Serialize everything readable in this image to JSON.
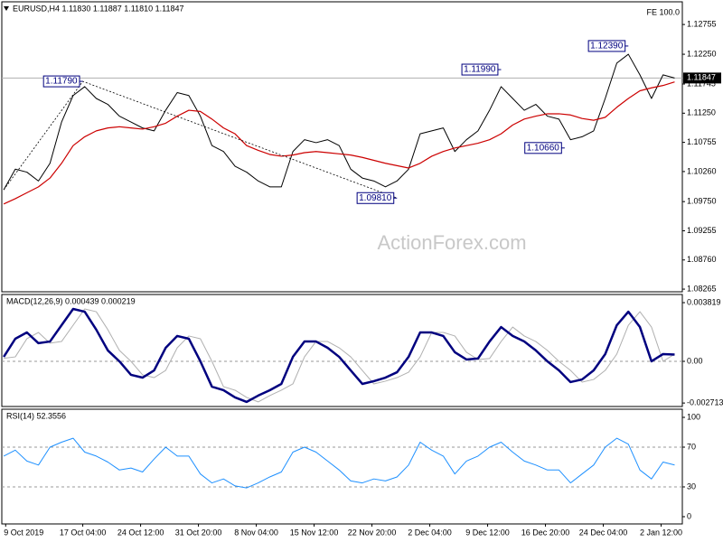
{
  "chart_data": [
    {
      "type": "line",
      "title": "EURUSD,H4  1.11830 1.11887 1.11810 1.11847",
      "label": "FE 100.0",
      "watermark": "ActionForex.com",
      "x": [
        0,
        6,
        12,
        18,
        24,
        30,
        36,
        42,
        48,
        54,
        60,
        66,
        72,
        78,
        84,
        90,
        96,
        102,
        108,
        114,
        120,
        126,
        132,
        138,
        144,
        150,
        156,
        162,
        168,
        174,
        180,
        186,
        192,
        198,
        204,
        210,
        216,
        222,
        228,
        234,
        240,
        246,
        252,
        258,
        264,
        270,
        276,
        282,
        288,
        294,
        300,
        306,
        312,
        318,
        324,
        330,
        336,
        342,
        348
      ],
      "xlim": [
        -1,
        352
      ],
      "ylim": [
        1.0822,
        1.1314
      ],
      "yticks": [
        1.12755,
        {
          "value": 1.1225,
          "label": "1.12250"
        },
        1.11745,
        {
          "value": 1.1125,
          "label": "1.11250"
        },
        1.10755,
        {
          "value": 1.1026,
          "label": "1.10260"
        },
        {
          "value": 1.0975,
          "label": "1.09750"
        },
        1.09255,
        {
          "value": 1.0876,
          "label": "1.08760"
        },
        1.08265
      ],
      "series": [
        {
          "color": "#000000",
          "width": 1,
          "values": [
            1.0995,
            1.103,
            1.1025,
            1.101,
            1.104,
            1.111,
            1.1155,
            1.117,
            1.115,
            1.114,
            1.112,
            1.111,
            1.11,
            1.1095,
            1.113,
            1.116,
            1.1155,
            1.112,
            1.107,
            1.106,
            1.1035,
            1.1025,
            1.101,
            1.1,
            1.1,
            1.106,
            1.108,
            1.1075,
            1.108,
            1.107,
            1.103,
            1.1015,
            1.101,
            1.1,
            1.101,
            1.103,
            1.109,
            1.1095,
            1.11,
            1.106,
            1.108,
            1.1095,
            1.113,
            1.117,
            1.115,
            1.113,
            1.114,
            1.112,
            1.1115,
            1.108,
            1.1085,
            1.1095,
            1.115,
            1.121,
            1.1225,
            1.119,
            1.115,
            1.119,
            1.11847
          ]
        },
        {
          "color": "#cc0000",
          "width": 1.2,
          "values": [
            1.0971,
            1.098,
            1.099,
            1.1,
            1.1015,
            1.104,
            1.107,
            1.1085,
            1.1095,
            1.11,
            1.1102,
            1.11,
            1.1098,
            1.1102,
            1.1108,
            1.112,
            1.113,
            1.1128,
            1.1115,
            1.11,
            1.109,
            1.107,
            1.1062,
            1.1055,
            1.1052,
            1.1054,
            1.1058,
            1.106,
            1.1058,
            1.1056,
            1.1054,
            1.105,
            1.1045,
            1.104,
            1.1036,
            1.1032,
            1.104,
            1.1052,
            1.106,
            1.1066,
            1.107,
            1.1074,
            1.108,
            1.109,
            1.1105,
            1.1115,
            1.112,
            1.1124,
            1.1124,
            1.1122,
            1.1116,
            1.1113,
            1.1118,
            1.1135,
            1.115,
            1.1163,
            1.1168,
            1.1172,
            1.1178
          ]
        }
      ],
      "annotations": [
        {
          "text": "1.11790",
          "x": 41,
          "value": 1.1179
        },
        {
          "text": "1.11990",
          "x": 258,
          "value": 1.1199
        },
        {
          "text": "1.12390",
          "x": 324,
          "value": 1.1239
        },
        {
          "text": "1.10660",
          "x": 291,
          "value": 1.1066
        },
        {
          "text": "1.09810",
          "x": 204,
          "value": 1.0981
        }
      ],
      "last_price": 1.11847
    },
    {
      "type": "line",
      "title": "MACD(12,26,9) 0.000439 0.000219",
      "x": [
        0,
        6,
        12,
        18,
        24,
        30,
        36,
        42,
        48,
        54,
        60,
        66,
        72,
        78,
        84,
        90,
        96,
        102,
        108,
        114,
        120,
        126,
        132,
        138,
        144,
        150,
        156,
        162,
        168,
        174,
        180,
        186,
        192,
        198,
        204,
        210,
        216,
        222,
        228,
        234,
        240,
        246,
        252,
        258,
        264,
        270,
        276,
        282,
        288,
        294,
        300,
        306,
        312,
        318,
        324,
        330,
        336,
        342,
        348
      ],
      "xlim": [
        -1,
        352
      ],
      "ylim": [
        -0.00294,
        0.00435
      ],
      "yticks": [
        0.003819,
        {
          "value": 0,
          "label": "0.00"
        },
        -0.002713
      ],
      "level_lines": true,
      "series": [
        {
          "color": "#b0b0b0",
          "width": 1,
          "values": [
            0.0002,
            0.00029,
            0.00147,
            0.00188,
            0.00118,
            0.00129,
            0.00235,
            0.00341,
            0.00323,
            0.00206,
            0.00071,
            0,
            -0.00088,
            -0.00106,
            -0.00059,
            0.00088,
            0.00165,
            0.00147,
            0,
            -0.00165,
            -0.00188,
            -0.00235,
            -0.00264,
            -0.00223,
            -0.00188,
            -0.00147,
            0.00029,
            0.00129,
            0.00129,
            0.00088,
            0.00029,
            -0.00059,
            -0.00147,
            -0.00129,
            -0.00106,
            -0.00071,
            0.00029,
            0.00188,
            0.00188,
            0.00165,
            0.00059,
            0.00012,
            0.00018,
            0.00129,
            0.00223,
            0.00165,
            0.00129,
            0.00071,
            0,
            -0.00059,
            -0.00135,
            -0.00118,
            -0.00059,
            0.00047,
            0.00235,
            0.00323,
            0.00223,
            0,
            0.00047
          ]
        },
        {
          "color": "#00007f",
          "width": 2.5,
          "values": [
            0.00029,
            0.00147,
            0.00188,
            0.00118,
            0.00129,
            0.00235,
            0.00341,
            0.00323,
            0.00206,
            0.00071,
            0,
            -0.00088,
            -0.00106,
            -0.00059,
            0.00088,
            0.00165,
            0.00147,
            0,
            -0.00165,
            -0.00188,
            -0.00235,
            -0.00264,
            -0.00223,
            -0.00188,
            -0.00147,
            0.00029,
            0.00129,
            0.00129,
            0.00088,
            0.00029,
            -0.00059,
            -0.00147,
            -0.00129,
            -0.00106,
            -0.00071,
            0.00029,
            0.00188,
            0.00188,
            0.00165,
            0.00059,
            0.00012,
            0.00018,
            0.00129,
            0.00223,
            0.00165,
            0.00129,
            0.00071,
            0,
            -0.00059,
            -0.00135,
            -0.00118,
            -0.00059,
            0.00047,
            0.00235,
            0.00323,
            0.00223,
            0,
            0.00047,
            0.00044
          ]
        }
      ]
    },
    {
      "type": "line",
      "title": "RSI(14) 52.3556",
      "x": [
        0,
        6,
        12,
        18,
        24,
        30,
        36,
        42,
        48,
        54,
        60,
        66,
        72,
        78,
        84,
        90,
        96,
        102,
        108,
        114,
        120,
        126,
        132,
        138,
        144,
        150,
        156,
        162,
        168,
        174,
        180,
        186,
        192,
        198,
        204,
        210,
        216,
        222,
        228,
        234,
        240,
        246,
        252,
        258,
        264,
        270,
        276,
        282,
        288,
        294,
        300,
        306,
        312,
        318,
        324,
        330,
        336,
        342,
        348
      ],
      "xlim": [
        -1,
        352
      ],
      "ylim": [
        -7.3,
        108.2
      ],
      "yticks": [
        100,
        70,
        30,
        0
      ],
      "level_lines": true,
      "xticks": [
        {
          "value": 1,
          "label": "9 Oct 2019"
        },
        {
          "value": 41,
          "label": "17 Oct 04:00"
        },
        {
          "value": 71,
          "label": "24 Oct 12:00"
        },
        {
          "value": 101,
          "label": "31 Oct 20:00"
        },
        {
          "value": 131,
          "label": "8 Nov 04:00"
        },
        {
          "value": 161,
          "label": "15 Nov 12:00"
        },
        {
          "value": 191,
          "label": "22 Nov 20:00"
        },
        {
          "value": 221,
          "label": "2 Dec 04:00"
        },
        {
          "value": 251,
          "label": "9 Dec 12:00"
        },
        {
          "value": 281,
          "label": "16 Dec 20:00"
        },
        {
          "value": 311,
          "label": "24 Dec 04:00"
        },
        {
          "value": 341,
          "label": "2 Jan 12:00"
        }
      ],
      "series": [
        {
          "color": "#1e90ff",
          "width": 1,
          "values": [
            61,
            67,
            56,
            52,
            70,
            75,
            79,
            65,
            61,
            55,
            47,
            49,
            45,
            58,
            70,
            61,
            61,
            43,
            34,
            38,
            31,
            29,
            34,
            40,
            45,
            65,
            70,
            65,
            56,
            47,
            36,
            34,
            38,
            36,
            40,
            52,
            75,
            67,
            61,
            43,
            56,
            61,
            70,
            75,
            65,
            56,
            52,
            47,
            47,
            34,
            43,
            52,
            70,
            79,
            73,
            47,
            38,
            55,
            52
          ]
        }
      ]
    }
  ]
}
